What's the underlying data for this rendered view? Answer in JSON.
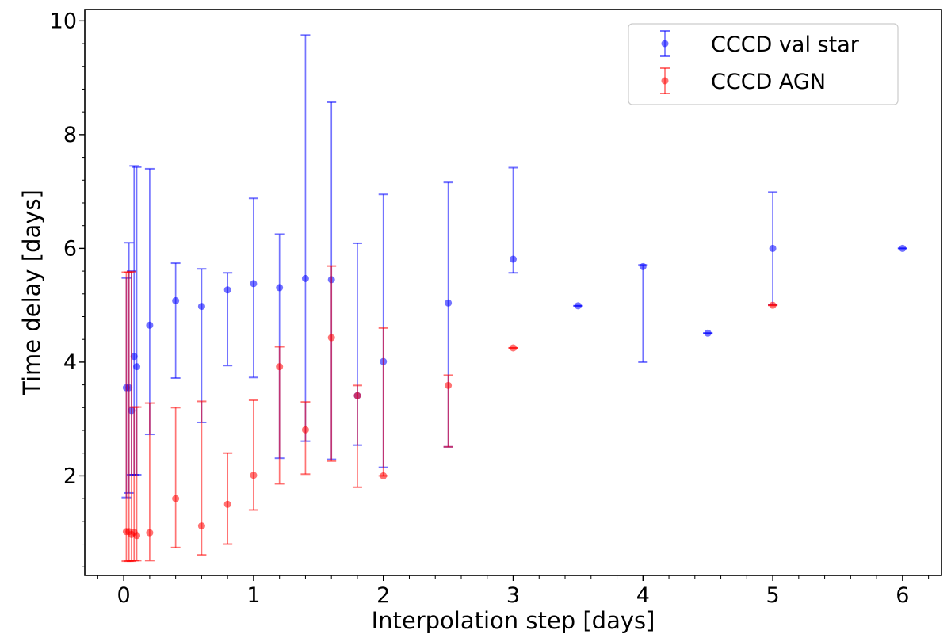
{
  "chart_data": {
    "type": "scatter",
    "xlabel": "Interpolation step [days]",
    "ylabel": "Time delay [days]",
    "xlim": [
      -0.3,
      6.3
    ],
    "ylim": [
      0.25,
      10.2
    ],
    "xticks": [
      0,
      1,
      2,
      3,
      4,
      5,
      6
    ],
    "yticks": [
      2,
      4,
      6,
      8,
      10
    ],
    "legend_position": "top-right",
    "series": [
      {
        "name": "CCCD val star",
        "color": "#0000ff",
        "points": [
          {
            "x": 0.02,
            "y": 3.55,
            "lo": 1.62,
            "hi": 5.48
          },
          {
            "x": 0.04,
            "y": 3.55,
            "lo": 1.7,
            "hi": 6.1
          },
          {
            "x": 0.06,
            "y": 3.15,
            "lo": 2.02,
            "hi": 5.6
          },
          {
            "x": 0.08,
            "y": 4.1,
            "lo": 2.02,
            "hi": 7.45
          },
          {
            "x": 0.1,
            "y": 3.92,
            "lo": 2.02,
            "hi": 7.43
          },
          {
            "x": 0.2,
            "y": 4.65,
            "lo": 2.73,
            "hi": 7.4
          },
          {
            "x": 0.4,
            "y": 5.08,
            "lo": 3.72,
            "hi": 5.74
          },
          {
            "x": 0.6,
            "y": 4.98,
            "lo": 2.94,
            "hi": 5.64
          },
          {
            "x": 0.8,
            "y": 5.27,
            "lo": 3.94,
            "hi": 5.57
          },
          {
            "x": 1.0,
            "y": 5.38,
            "lo": 3.73,
            "hi": 6.88
          },
          {
            "x": 1.2,
            "y": 5.31,
            "lo": 2.31,
            "hi": 6.25
          },
          {
            "x": 1.4,
            "y": 5.47,
            "lo": 2.61,
            "hi": 9.75
          },
          {
            "x": 1.6,
            "y": 5.45,
            "lo": 2.29,
            "hi": 8.57
          },
          {
            "x": 1.8,
            "y": 3.41,
            "lo": 2.54,
            "hi": 6.09
          },
          {
            "x": 2.0,
            "y": 4.01,
            "lo": 2.15,
            "hi": 6.95
          },
          {
            "x": 2.5,
            "y": 5.04,
            "lo": 2.51,
            "hi": 7.16
          },
          {
            "x": 3.0,
            "y": 5.81,
            "lo": 5.57,
            "hi": 7.42
          },
          {
            "x": 3.5,
            "y": 4.99,
            "lo": 4.99,
            "hi": 4.99
          },
          {
            "x": 4.0,
            "y": 5.68,
            "lo": 4.0,
            "hi": 5.71
          },
          {
            "x": 4.5,
            "y": 4.51,
            "lo": 4.51,
            "hi": 4.51
          },
          {
            "x": 5.0,
            "y": 6.0,
            "lo": 5.01,
            "hi": 6.99
          },
          {
            "x": 6.0,
            "y": 6.0,
            "lo": 6.0,
            "hi": 6.0
          }
        ]
      },
      {
        "name": "CCCD AGN",
        "color": "#ff0000",
        "points": [
          {
            "x": 0.02,
            "y": 1.02,
            "lo": 0.5,
            "hi": 5.58
          },
          {
            "x": 0.04,
            "y": 1.02,
            "lo": 0.5,
            "hi": 5.58
          },
          {
            "x": 0.06,
            "y": 0.97,
            "lo": 0.5,
            "hi": 5.59
          },
          {
            "x": 0.08,
            "y": 1.01,
            "lo": 0.51,
            "hi": 3.21
          },
          {
            "x": 0.1,
            "y": 0.95,
            "lo": 0.51,
            "hi": 3.21
          },
          {
            "x": 0.2,
            "y": 1.0,
            "lo": 0.51,
            "hi": 3.28
          },
          {
            "x": 0.4,
            "y": 1.6,
            "lo": 0.74,
            "hi": 3.2
          },
          {
            "x": 0.6,
            "y": 1.12,
            "lo": 0.61,
            "hi": 3.31
          },
          {
            "x": 0.8,
            "y": 1.5,
            "lo": 0.8,
            "hi": 2.4
          },
          {
            "x": 1.0,
            "y": 2.01,
            "lo": 1.4,
            "hi": 3.33
          },
          {
            "x": 1.2,
            "y": 3.92,
            "lo": 1.86,
            "hi": 4.27
          },
          {
            "x": 1.4,
            "y": 2.81,
            "lo": 2.03,
            "hi": 3.3
          },
          {
            "x": 1.6,
            "y": 4.43,
            "lo": 2.26,
            "hi": 5.69
          },
          {
            "x": 1.8,
            "y": 3.41,
            "lo": 1.8,
            "hi": 3.59
          },
          {
            "x": 2.0,
            "y": 2.0,
            "lo": 2.0,
            "hi": 4.6
          },
          {
            "x": 2.5,
            "y": 3.59,
            "lo": 2.51,
            "hi": 3.77
          },
          {
            "x": 3.0,
            "y": 4.25,
            "lo": 4.25,
            "hi": 4.25
          },
          {
            "x": 5.0,
            "y": 5.0,
            "lo": 5.0,
            "hi": 5.0
          }
        ]
      }
    ]
  }
}
